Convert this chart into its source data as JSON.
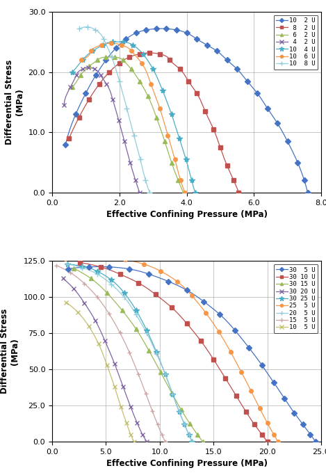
{
  "top_chart": {
    "xlabel": "Effective Confining Pressure (MPa)",
    "ylabel": "Differential Stress\n(MPa)",
    "xlim": [
      0.0,
      8.0
    ],
    "ylim": [
      0.0,
      30.0
    ],
    "xticks": [
      0.0,
      2.0,
      4.0,
      6.0,
      8.0
    ],
    "yticks": [
      0.0,
      10.0,
      20.0,
      30.0
    ],
    "series": [
      {
        "label": "10  2 U",
        "color": "#4472C4",
        "marker": "D",
        "markersize": 4,
        "x": [
          7.6,
          7.5,
          7.3,
          7.0,
          6.7,
          6.4,
          6.1,
          5.8,
          5.5,
          5.2,
          4.9,
          4.6,
          4.3,
          4.0,
          3.7,
          3.4,
          3.1,
          2.8,
          2.5,
          2.2,
          1.9,
          1.6,
          1.3,
          1.0,
          0.7,
          0.4
        ],
        "y": [
          0.0,
          2.0,
          5.0,
          8.5,
          11.5,
          14.0,
          16.5,
          18.5,
          20.5,
          22.0,
          23.5,
          24.5,
          25.5,
          26.5,
          27.0,
          27.2,
          27.2,
          27.0,
          26.5,
          25.5,
          24.0,
          22.0,
          19.5,
          16.5,
          13.0,
          8.0
        ]
      },
      {
        "label": " 8  2 U",
        "color": "#C0504D",
        "marker": "s",
        "markersize": 4,
        "x": [
          5.55,
          5.4,
          5.2,
          5.0,
          4.8,
          4.55,
          4.3,
          4.05,
          3.8,
          3.5,
          3.2,
          2.9,
          2.6,
          2.3,
          2.0,
          1.7,
          1.4,
          1.1,
          0.8,
          0.5
        ],
        "y": [
          0.0,
          2.0,
          4.5,
          7.5,
          10.5,
          13.5,
          16.5,
          18.5,
          20.5,
          22.0,
          23.0,
          23.2,
          23.0,
          22.5,
          21.5,
          20.0,
          18.0,
          15.5,
          12.5,
          9.0
        ]
      },
      {
        "label": " 6  2 U",
        "color": "#9BBB59",
        "marker": "^",
        "markersize": 4,
        "x": [
          3.9,
          3.75,
          3.55,
          3.35,
          3.1,
          2.85,
          2.6,
          2.35,
          2.1,
          1.85,
          1.6,
          1.35,
          1.1,
          0.85,
          0.6
        ],
        "y": [
          0.0,
          2.0,
          5.0,
          8.5,
          12.5,
          16.0,
          18.5,
          20.5,
          22.0,
          22.5,
          22.5,
          22.0,
          21.0,
          19.5,
          17.5
        ]
      },
      {
        "label": " 4  2 U",
        "color": "#8064A2",
        "marker": "x",
        "markersize": 5,
        "x": [
          2.6,
          2.48,
          2.32,
          2.15,
          1.98,
          1.8,
          1.62,
          1.44,
          1.26,
          1.08,
          0.9,
          0.72,
          0.54,
          0.36
        ],
        "y": [
          0.0,
          2.0,
          5.0,
          8.5,
          12.0,
          15.5,
          18.0,
          19.5,
          20.5,
          20.8,
          20.5,
          19.5,
          17.5,
          14.5
        ]
      },
      {
        "label": "10  4 U",
        "color": "#4BACC6",
        "marker": "*",
        "markersize": 6,
        "x": [
          4.25,
          4.15,
          3.98,
          3.78,
          3.55,
          3.28,
          3.0,
          2.7,
          2.4,
          2.1,
          1.8,
          1.5,
          1.2,
          0.9,
          0.6
        ],
        "y": [
          0.0,
          2.0,
          5.5,
          9.0,
          13.0,
          17.0,
          20.5,
          23.0,
          24.5,
          25.0,
          25.0,
          24.5,
          23.5,
          22.0,
          20.0
        ]
      },
      {
        "label": "10  6 U",
        "color": "#F79646",
        "marker": "o",
        "markersize": 4,
        "x": [
          3.95,
          3.82,
          3.65,
          3.44,
          3.2,
          2.94,
          2.66,
          2.36,
          2.06,
          1.76,
          1.46,
          1.16,
          0.86
        ],
        "y": [
          0.0,
          2.0,
          5.5,
          9.5,
          14.0,
          18.0,
          21.5,
          23.5,
          24.5,
          24.8,
          24.5,
          23.5,
          22.0
        ]
      },
      {
        "label": "10  8 U",
        "color": "#92CDDC",
        "marker": "+",
        "markersize": 6,
        "x": [
          2.9,
          2.78,
          2.62,
          2.43,
          2.22,
          2.0,
          1.77,
          1.53,
          1.29,
          1.05,
          0.81
        ],
        "y": [
          0.0,
          2.0,
          5.5,
          9.5,
          14.0,
          18.5,
          22.5,
          25.5,
          27.0,
          27.5,
          27.2
        ]
      }
    ]
  },
  "bottom_chart": {
    "xlabel": "Effective Confining Pressure (MPa)",
    "ylabel": "Differential Stress\n(MPa)",
    "xlim": [
      0.0,
      25.0
    ],
    "ylim": [
      0.0,
      125.0
    ],
    "xticks": [
      0.0,
      5.0,
      10.0,
      15.0,
      20.0,
      25.0
    ],
    "yticks": [
      0.0,
      25.0,
      50.0,
      75.0,
      100.0,
      125.0
    ],
    "series": [
      {
        "label": "30  5 U",
        "color": "#4472C4",
        "marker": "D",
        "markersize": 4,
        "x": [
          24.5,
          24.0,
          23.3,
          22.5,
          21.6,
          20.6,
          19.5,
          18.3,
          17.0,
          15.6,
          14.1,
          12.5,
          10.8,
          9.0,
          7.2,
          5.3,
          3.4,
          1.5
        ],
        "y": [
          0.0,
          5.0,
          12.0,
          20.0,
          30.0,
          41.0,
          53.0,
          65.0,
          77.0,
          88.0,
          97.0,
          105.0,
          111.0,
          116.0,
          119.5,
          121.0,
          121.0,
          119.5
        ]
      },
      {
        "label": "30 10 U",
        "color": "#C0504D",
        "marker": "s",
        "markersize": 4,
        "x": [
          20.0,
          19.5,
          18.8,
          18.0,
          17.1,
          16.1,
          15.0,
          13.8,
          12.5,
          11.1,
          9.6,
          8.0,
          6.3,
          4.5,
          2.6
        ],
        "y": [
          0.0,
          5.0,
          12.0,
          21.0,
          32.0,
          44.0,
          57.0,
          70.0,
          82.0,
          93.0,
          102.0,
          110.0,
          116.0,
          121.0,
          124.0
        ]
      },
      {
        "label": "30 15 U",
        "color": "#9BBB59",
        "marker": "^",
        "markersize": 4,
        "x": [
          14.0,
          13.5,
          12.8,
          12.0,
          11.1,
          10.1,
          9.0,
          7.8,
          6.5,
          5.1,
          3.6,
          2.0
        ],
        "y": [
          0.0,
          5.0,
          12.5,
          22.0,
          34.0,
          48.0,
          63.0,
          78.0,
          91.0,
          103.0,
          113.0,
          120.0
        ]
      },
      {
        "label": "30 20 U",
        "color": "#8064A2",
        "marker": "x",
        "markersize": 5,
        "x": [
          8.8,
          8.4,
          7.9,
          7.3,
          6.6,
          5.8,
          4.9,
          4.0,
          3.0,
          2.0,
          1.0
        ],
        "y": [
          0.0,
          5.0,
          13.0,
          24.0,
          38.0,
          54.0,
          70.0,
          84.0,
          96.0,
          106.0,
          113.0
        ]
      },
      {
        "label": "30 25 U",
        "color": "#4BACC6",
        "marker": "*",
        "markersize": 6,
        "x": [
          13.0,
          12.7,
          12.3,
          11.8,
          11.2,
          10.5,
          9.7,
          8.8,
          7.8,
          6.7,
          5.5,
          4.2,
          2.8,
          1.4
        ],
        "y": [
          0.0,
          5.0,
          12.0,
          21.0,
          33.0,
          47.0,
          62.0,
          77.0,
          91.0,
          103.0,
          112.0,
          118.0,
          121.5,
          123.0
        ]
      },
      {
        "label": "25  5 U",
        "color": "#F79646",
        "marker": "o",
        "markersize": 4,
        "x": [
          21.0,
          20.6,
          20.0,
          19.3,
          18.5,
          17.6,
          16.6,
          15.5,
          14.3,
          13.0,
          11.6,
          10.1,
          8.5,
          6.8,
          5.0,
          3.1,
          1.2
        ],
        "y": [
          0.0,
          5.0,
          13.0,
          23.0,
          35.0,
          48.0,
          62.0,
          76.0,
          89.0,
          101.0,
          111.0,
          118.0,
          123.0,
          126.0,
          127.5,
          127.5,
          126.5
        ]
      },
      {
        "label": "20  5 U",
        "color": "#92CDDC",
        "marker": "+",
        "markersize": 6,
        "x": [
          13.0,
          12.7,
          12.3,
          11.8,
          11.2,
          10.5,
          9.7,
          8.8,
          7.8,
          6.7,
          5.5,
          4.2,
          2.8,
          1.4
        ],
        "y": [
          0.0,
          5.0,
          12.0,
          21.0,
          33.0,
          47.0,
          61.0,
          75.0,
          88.0,
          100.0,
          109.0,
          116.0,
          120.5,
          123.0
        ]
      },
      {
        "label": "15  5 U",
        "color": "#CDA3A3",
        "marker": "+",
        "markersize": 5,
        "x": [
          10.5,
          10.2,
          9.8,
          9.3,
          8.7,
          8.0,
          7.2,
          6.3,
          5.3,
          4.2,
          3.0,
          1.7,
          0.4
        ],
        "y": [
          0.0,
          5.0,
          12.0,
          21.5,
          33.5,
          47.0,
          61.5,
          75.5,
          88.5,
          100.0,
          109.5,
          117.0,
          122.0
        ]
      },
      {
        "label": "10  5 U",
        "color": "#C4BE70",
        "marker": "x",
        "markersize": 5,
        "x": [
          7.6,
          7.3,
          6.9,
          6.4,
          5.8,
          5.1,
          4.3,
          3.4,
          2.4,
          1.3
        ],
        "y": [
          0.0,
          5.0,
          13.0,
          24.0,
          38.0,
          53.0,
          68.0,
          80.0,
          89.5,
          96.5
        ]
      }
    ]
  }
}
